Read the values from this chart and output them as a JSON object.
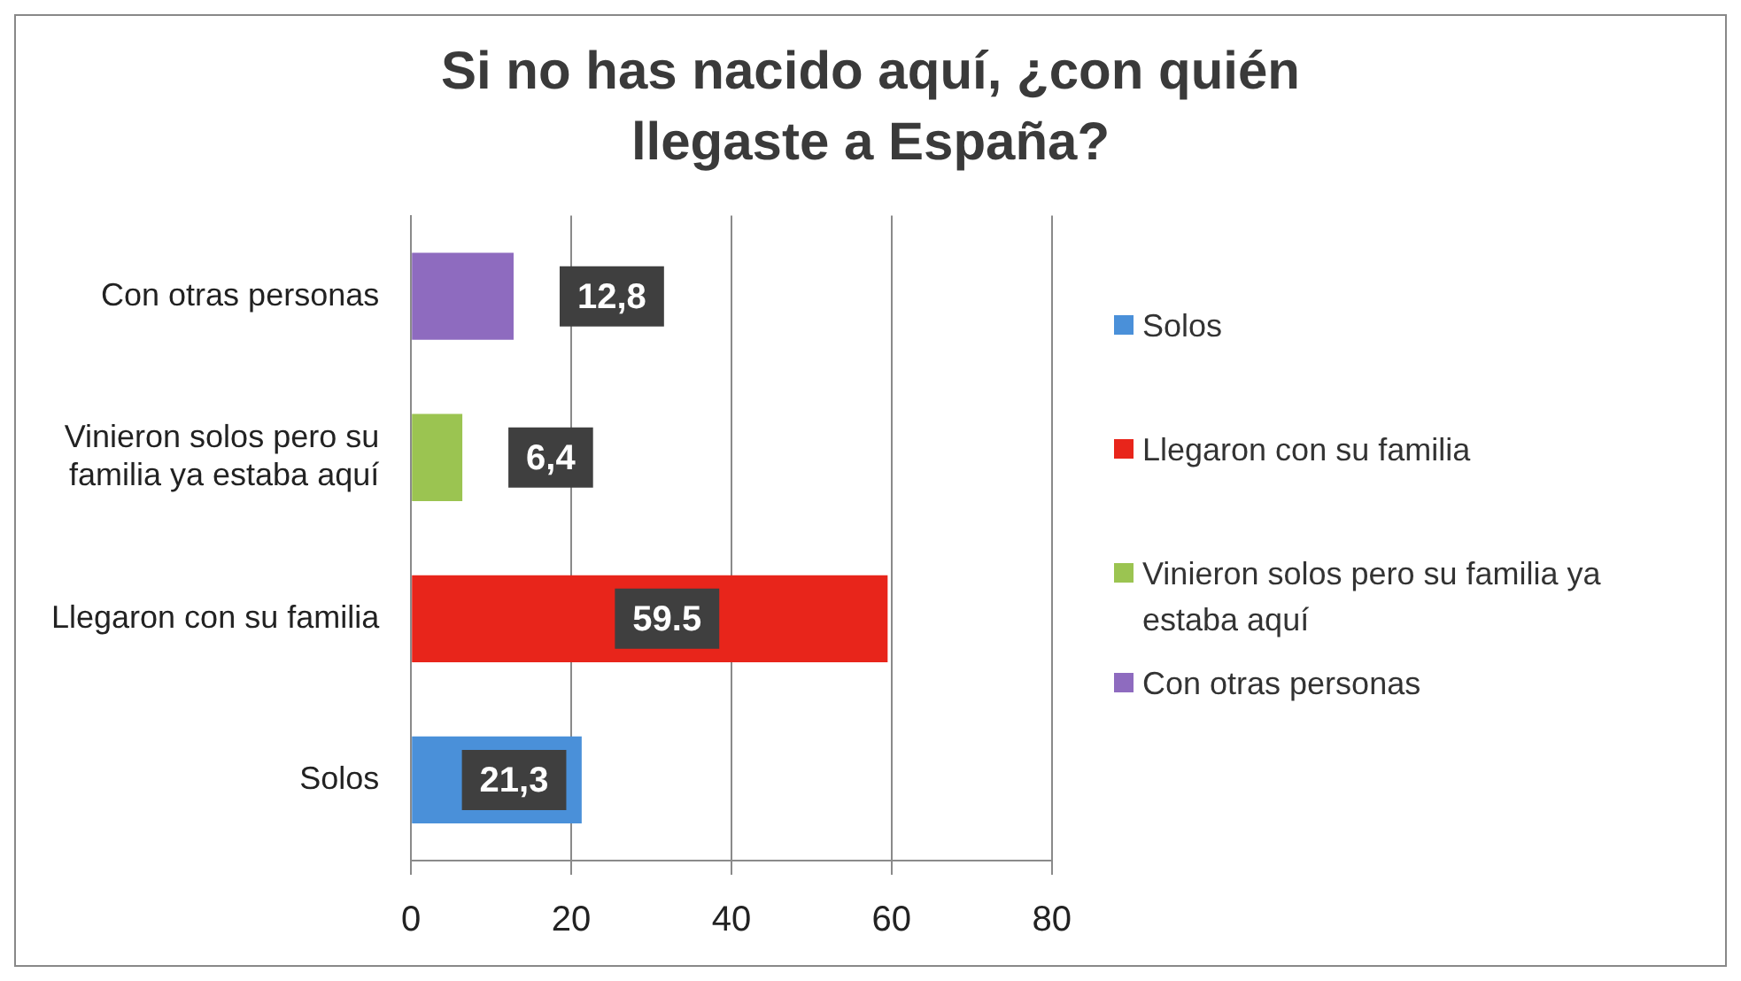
{
  "chart_data": {
    "type": "bar",
    "orientation": "horizontal",
    "title": "Si no has nacido aquí, ¿con quién llegaste a España?",
    "categories": [
      "Con otras personas",
      "Vinieron solos pero su familia ya estaba aquí",
      "Llegaron con su familia",
      "Solos"
    ],
    "series": [
      {
        "name": "Solos",
        "color": "#4a90d9",
        "values": [
          null,
          null,
          null,
          21.3
        ],
        "value_labels": [
          null,
          null,
          null,
          "21,3"
        ]
      },
      {
        "name": "Llegaron con su familia",
        "color": "#e8251b",
        "values": [
          null,
          null,
          59.5,
          null
        ],
        "value_labels": [
          null,
          null,
          "59.5",
          null
        ]
      },
      {
        "name": "Vinieron solos pero su familia ya estaba aquí",
        "color": "#9bc451",
        "values": [
          null,
          6.4,
          null,
          null
        ],
        "value_labels": [
          null,
          "6,4",
          null,
          null
        ]
      },
      {
        "name": "Con otras personas",
        "color": "#8e6bbf",
        "values": [
          12.8,
          null,
          null,
          null
        ],
        "value_labels": [
          "12,8",
          null,
          null,
          null
        ]
      }
    ],
    "xlim": [
      0,
      80
    ],
    "xticks": [
      0,
      20,
      40,
      60,
      80
    ],
    "grid": "x",
    "legend": "right"
  }
}
